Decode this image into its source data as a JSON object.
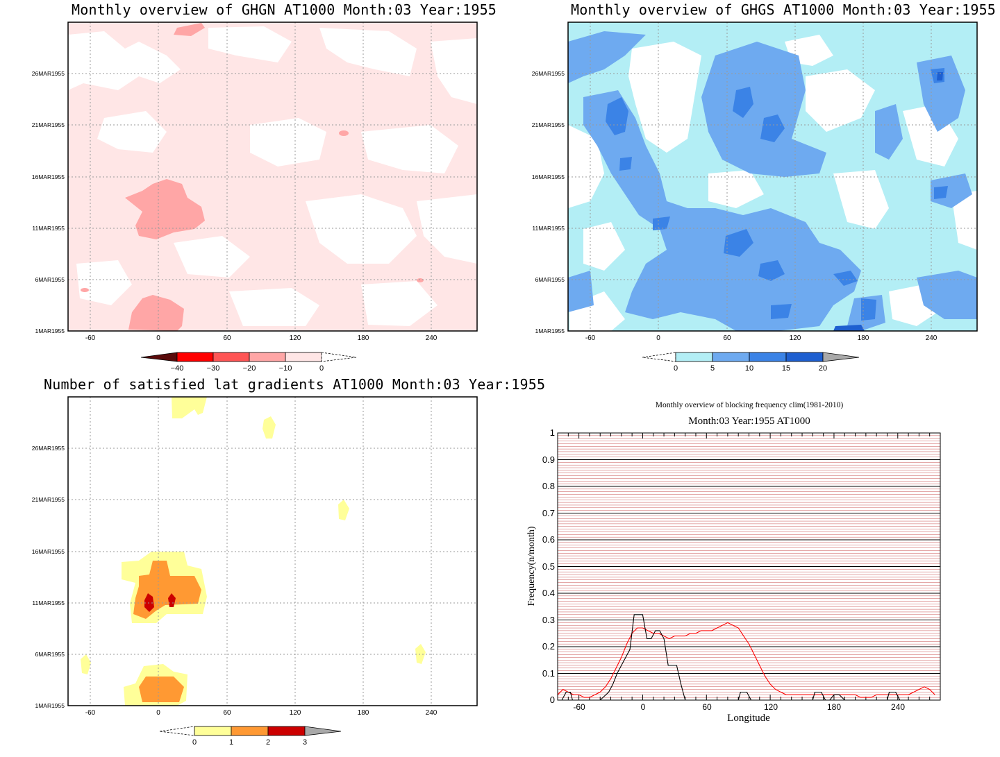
{
  "panels": {
    "ghgn": {
      "title": "Monthly overview of GHGN AT1000 Month:03 Year:1955",
      "colorbar": {
        "labels": [
          "−40",
          "−30",
          "−20",
          "−10",
          "0"
        ],
        "colors": [
          "#5a0a0a",
          "#ff0000",
          "#ff5555",
          "#ffa6a6",
          "#ffe6e6"
        ]
      }
    },
    "ghgs": {
      "title": "Monthly overview of GHGS AT1000 Month:03 Year:1955",
      "colorbar": {
        "labels": [
          "0",
          "5",
          "10",
          "15",
          "20"
        ],
        "colors": [
          "#b3eef5",
          "#6eaaf0",
          "#3b83e6",
          "#1e5fd0",
          "#a9a9a9"
        ]
      }
    },
    "grad": {
      "title": "Number of satisfied lat gradients AT1000 Month:03 Year:1955",
      "colorbar": {
        "labels": [
          "0",
          "1",
          "2",
          "3"
        ],
        "colors": [
          "#ffff99",
          "#ff9933",
          "#cc0000",
          "#a9a9a9"
        ]
      }
    },
    "freq": {
      "title": "Monthly overview of blocking frequency clim(1981-2010)",
      "subtitle": "Month:03 Year:1955  AT1000"
    }
  },
  "map_axes": {
    "x_ticks": [
      "-60",
      "0",
      "60",
      "120",
      "180",
      "240"
    ],
    "y_ticks": [
      "1MAR1955",
      "6MAR1955",
      "11MAR1955",
      "16MAR1955",
      "21MAR1955",
      "26MAR1955"
    ]
  },
  "chart_data": [
    {
      "type": "heatmap",
      "title": "Monthly overview of GHGN AT1000 Month:03 Year:1955",
      "x": [
        -80,
        280
      ],
      "y_range": [
        "1MAR1955",
        "31MAR1955"
      ],
      "levels": [
        -40,
        -30,
        -20,
        -10,
        0
      ]
    },
    {
      "type": "heatmap",
      "title": "Monthly overview of GHGS AT1000 Month:03 Year:1955",
      "x": [
        -80,
        280
      ],
      "y_range": [
        "1MAR1955",
        "31MAR1955"
      ],
      "levels": [
        0,
        5,
        10,
        15,
        20
      ]
    },
    {
      "type": "heatmap",
      "title": "Number of satisfied lat gradients AT1000 Month:03 Year:1955",
      "x": [
        -80,
        280
      ],
      "y_range": [
        "1MAR1955",
        "31MAR1955"
      ],
      "levels": [
        0,
        1,
        2,
        3
      ]
    },
    {
      "type": "line",
      "title": "Monthly overview of blocking frequency clim(1981-2010)",
      "subtitle": "Month:03 Year:1955  AT1000",
      "xlabel": "Longitude",
      "ylabel": "Frequency(n/month)",
      "xlim": [
        -80,
        280
      ],
      "ylim": [
        0,
        1
      ],
      "x_ticks": [
        "-60",
        "0",
        "60",
        "120",
        "180",
        "240"
      ],
      "y_ticks": [
        "0",
        "0.1",
        "0.2",
        "0.3",
        "0.4",
        "0.5",
        "0.6",
        "0.7",
        "0.8",
        "0.9",
        "1"
      ],
      "series": [
        {
          "color": "#ff0000",
          "x": [
            -80,
            -75,
            -70,
            -65,
            -60,
            -55,
            -50,
            -45,
            -40,
            -35,
            -30,
            -25,
            -20,
            -15,
            -10,
            -5,
            0,
            5,
            10,
            15,
            20,
            25,
            30,
            35,
            40,
            45,
            50,
            55,
            60,
            65,
            70,
            75,
            80,
            85,
            90,
            95,
            100,
            105,
            110,
            115,
            120,
            125,
            130,
            135,
            140,
            145,
            150,
            155,
            160,
            165,
            170,
            175,
            180,
            185,
            190,
            195,
            200,
            205,
            210,
            215,
            220,
            225,
            230,
            235,
            240,
            245,
            250,
            255,
            260,
            265,
            270,
            275
          ],
          "y": [
            0.02,
            0.04,
            0.03,
            0.02,
            0.02,
            0.01,
            0.01,
            0.02,
            0.03,
            0.05,
            0.08,
            0.12,
            0.16,
            0.21,
            0.25,
            0.27,
            0.27,
            0.26,
            0.25,
            0.25,
            0.24,
            0.23,
            0.24,
            0.24,
            0.24,
            0.25,
            0.25,
            0.26,
            0.26,
            0.26,
            0.27,
            0.28,
            0.29,
            0.28,
            0.27,
            0.24,
            0.21,
            0.17,
            0.13,
            0.09,
            0.06,
            0.04,
            0.03,
            0.02,
            0.02,
            0.02,
            0.02,
            0.02,
            0.02,
            0.02,
            0.02,
            0.02,
            0.02,
            0.02,
            0.02,
            0.02,
            0.02,
            0.01,
            0.01,
            0.01,
            0.02,
            0.02,
            0.02,
            0.02,
            0.02,
            0.02,
            0.02,
            0.03,
            0.04,
            0.05,
            0.04,
            0.02
          ]
        },
        {
          "color": "#000000",
          "x": [
            -80,
            -76,
            -72,
            -70,
            -68,
            -66,
            -64,
            -40,
            -32,
            -28,
            -24,
            -20,
            -16,
            -12,
            -8,
            -4,
            0,
            4,
            8,
            12,
            16,
            20,
            24,
            28,
            32,
            36,
            40,
            44,
            46,
            90,
            92,
            96,
            98,
            102,
            160,
            162,
            166,
            168,
            172,
            176,
            180,
            185,
            190,
            200,
            230,
            232,
            236,
            238,
            242,
            280
          ],
          "y": [
            0,
            0,
            0.03,
            0.03,
            0.03,
            0,
            0,
            0,
            0.03,
            0.06,
            0.1,
            0.13,
            0.16,
            0.19,
            0.32,
            0.32,
            0.32,
            0.23,
            0.23,
            0.26,
            0.26,
            0.23,
            0.13,
            0.13,
            0.13,
            0.06,
            0,
            0,
            0,
            0,
            0.03,
            0.03,
            0.03,
            0,
            0,
            0.03,
            0.03,
            0.03,
            0,
            0,
            0.02,
            0.02,
            0,
            0,
            0,
            0.03,
            0.03,
            0.03,
            0,
            0
          ]
        }
      ]
    }
  ]
}
